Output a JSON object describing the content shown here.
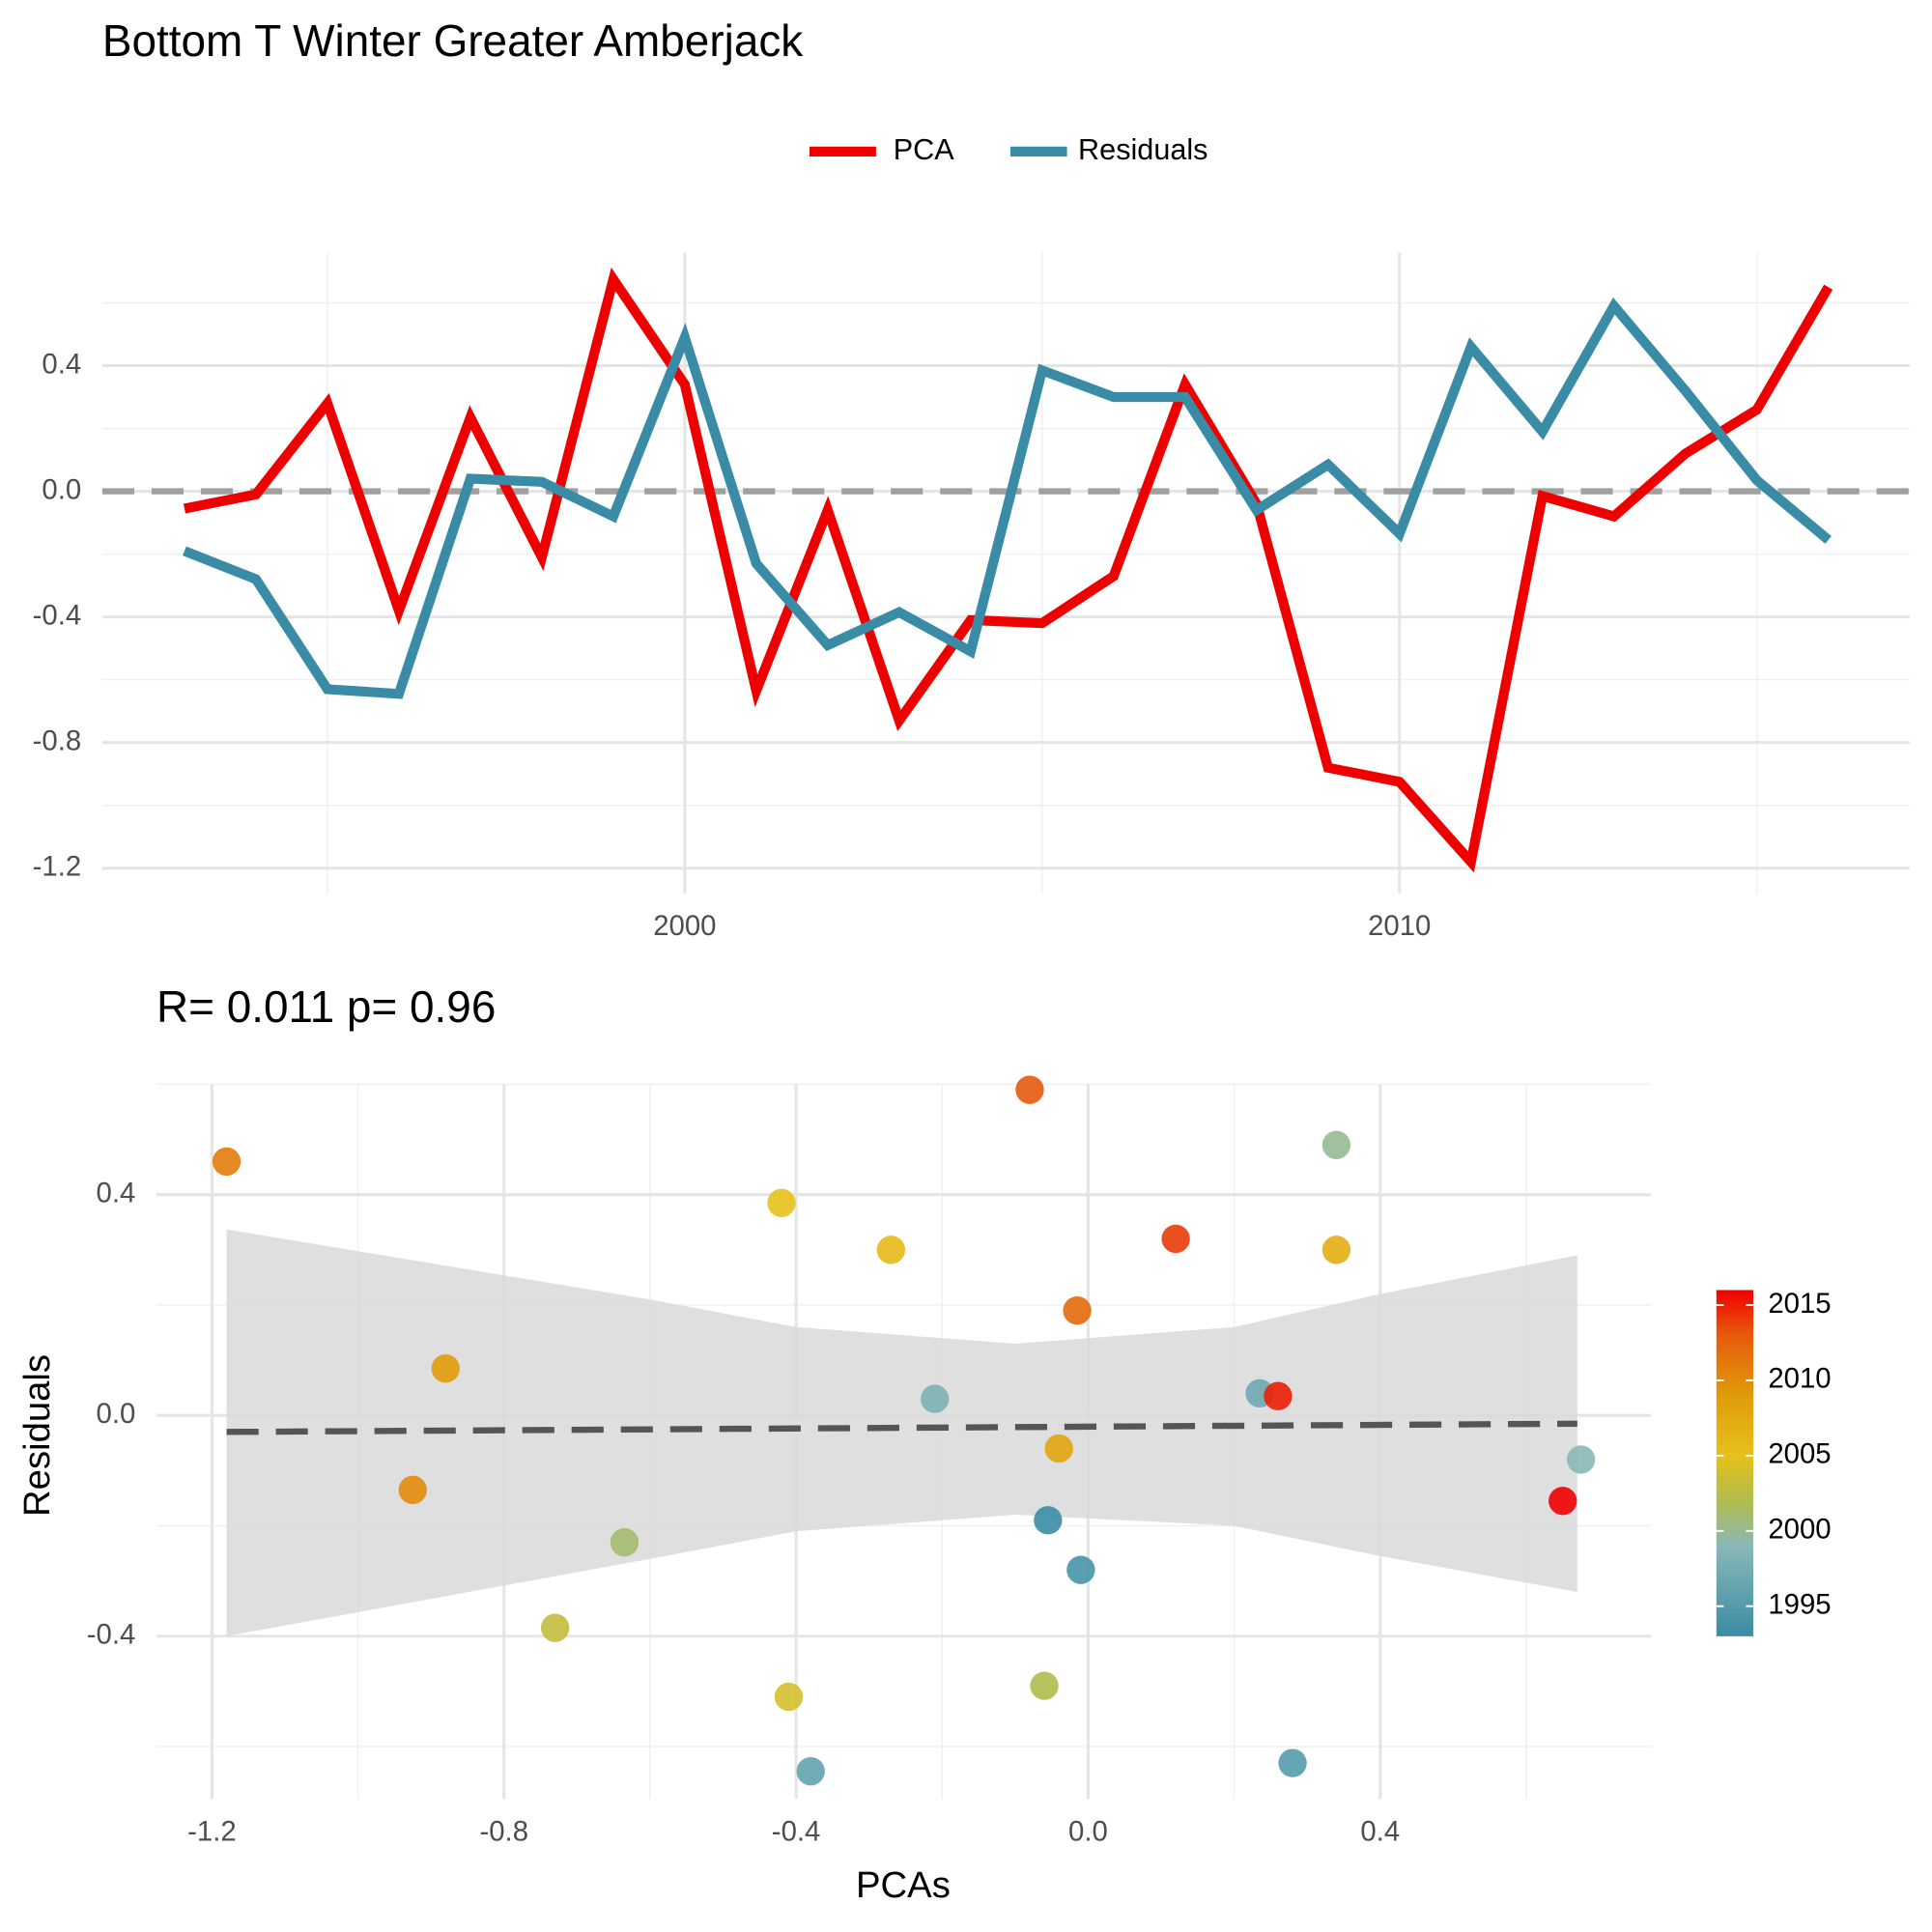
{
  "chart_data": [
    {
      "type": "line",
      "title": "Bottom T Winter Greater Amberjack",
      "x": [
        1993,
        1994,
        1995,
        1996,
        1997,
        1998,
        1999,
        2000,
        2001,
        2002,
        2003,
        2004,
        2005,
        2006,
        2007,
        2008,
        2009,
        2010,
        2011,
        2012,
        2013,
        2014,
        2015,
        2016
      ],
      "series": [
        {
          "name": "PCA",
          "color": "#ee0000",
          "values": [
            -0.055,
            -0.01,
            0.28,
            -0.38,
            0.235,
            -0.21,
            0.675,
            0.34,
            -0.635,
            -0.06,
            -0.73,
            -0.41,
            -0.42,
            -0.27,
            0.34,
            -0.04,
            -0.88,
            -0.925,
            -1.18,
            -0.015,
            -0.08,
            0.12,
            0.26,
            0.65
          ]
        },
        {
          "name": "Residuals",
          "color": "#3a8ca6",
          "values": [
            -0.19,
            -0.28,
            -0.63,
            -0.645,
            0.04,
            0.03,
            -0.08,
            0.49,
            -0.23,
            -0.49,
            -0.385,
            -0.51,
            0.385,
            0.3,
            0.3,
            -0.06,
            0.085,
            -0.135,
            0.46,
            0.19,
            0.59,
            0.32,
            0.035,
            -0.155
          ]
        }
      ],
      "xlim": [
        1991.85,
        2017.14
      ],
      "ylim": [
        -1.28,
        0.76
      ],
      "xticks": [
        2000,
        2010
      ],
      "yticks": [
        0.4,
        {
          "value": 0,
          "label": "0.0"
        },
        -0.4,
        -0.8,
        -1.2
      ],
      "minor_xticks": [
        1995,
        2005,
        2015
      ],
      "minor_yticks": [
        0.6,
        0.2,
        -0.2,
        -0.6,
        -1.0
      ],
      "hline": 0,
      "grid": true,
      "legend": "top"
    },
    {
      "type": "scatter",
      "title": "R= 0.011  p= 0.96",
      "x_label": "PCAs",
      "y_label": "Residuals",
      "x": [
        -0.055,
        -0.01,
        0.28,
        -0.38,
        0.235,
        -0.21,
        0.675,
        0.34,
        -0.635,
        -0.06,
        -0.73,
        -0.41,
        -0.42,
        -0.27,
        0.34,
        -0.04,
        -0.88,
        -0.925,
        -1.18,
        -0.015,
        -0.08,
        0.12,
        0.26,
        0.65
      ],
      "y": [
        -0.19,
        -0.28,
        -0.63,
        -0.645,
        0.04,
        0.03,
        -0.08,
        0.49,
        -0.23,
        -0.49,
        -0.385,
        -0.51,
        0.385,
        0.3,
        0.3,
        -0.06,
        0.085,
        -0.135,
        0.46,
        0.19,
        0.59,
        0.32,
        0.035,
        -0.155
      ],
      "color_by": [
        1993,
        1994,
        1995,
        1996,
        1997,
        1998,
        1999,
        2000,
        2001,
        2002,
        2003,
        2004,
        2005,
        2006,
        2007,
        2008,
        2009,
        2010,
        2011,
        2012,
        2013,
        2014,
        2015,
        2016
      ],
      "colorbar": {
        "range": [
          1993,
          2016
        ],
        "ticks": [
          1995,
          2000,
          2005,
          2010,
          2015
        ],
        "stops": [
          {
            "value": 1993,
            "color": "#3a8ca6"
          },
          {
            "value": 1999,
            "color": "#8ab8b6"
          },
          {
            "value": 2002,
            "color": "#b0bc4c"
          },
          {
            "value": 2005,
            "color": "#e6c11c"
          },
          {
            "value": 2009,
            "color": "#e09b0a"
          },
          {
            "value": 2013,
            "color": "#e65a0c"
          },
          {
            "value": 2016,
            "color": "#f00000"
          }
        ]
      },
      "fit": {
        "x": [
          -1.18,
          0.67
        ],
        "y": [
          -0.03,
          -0.015
        ]
      },
      "band": {
        "x": [
          -1.18,
          -0.6,
          -0.4,
          -0.1,
          0.2,
          0.4,
          0.67
        ],
        "upper": [
          0.337,
          0.21,
          0.16,
          0.13,
          0.16,
          0.22,
          0.29
        ],
        "lower": [
          -0.4,
          -0.26,
          -0.21,
          -0.18,
          -0.2,
          -0.255,
          -0.32
        ]
      },
      "xlim": [
        -1.276,
        0.771
      ],
      "ylim": [
        -0.695,
        0.6
      ],
      "xticks": [
        -1.2,
        -0.8,
        -0.4,
        {
          "value": 0,
          "label": "0.0"
        },
        0.4
      ],
      "yticks": [
        0.4,
        {
          "value": 0,
          "label": "0.0"
        },
        -0.4
      ],
      "minor_xticks": [
        -1.0,
        -0.6,
        -0.2,
        0.2,
        0.6
      ],
      "minor_yticks": [
        0.6,
        0.2,
        -0.2,
        -0.6
      ],
      "grid": true
    }
  ]
}
